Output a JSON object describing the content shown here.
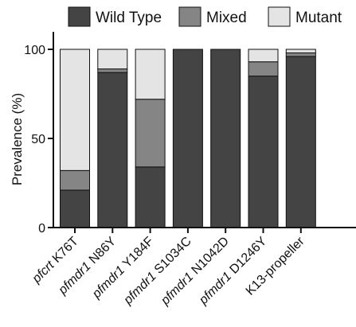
{
  "chart_data": {
    "type": "bar",
    "stacked": true,
    "title": "",
    "xlabel": "",
    "ylabel": "Prevalence (%)",
    "ylim": [
      0,
      100
    ],
    "yticks": [
      "0",
      "50",
      "100"
    ],
    "grid": false,
    "legend_position": "top",
    "categories": [
      {
        "gene": "pfcrt",
        "mutation": "K76T"
      },
      {
        "gene": "pfmdr1",
        "mutation": "N86Y"
      },
      {
        "gene": "pfmdr1",
        "mutation": "Y184F"
      },
      {
        "gene": "pfmdr1",
        "mutation": "S1034C"
      },
      {
        "gene": "pfmdr1",
        "mutation": "N1042D"
      },
      {
        "gene": "pfmdr1",
        "mutation": "D1246Y"
      },
      {
        "gene": "",
        "mutation": "K13-propeller"
      }
    ],
    "series": [
      {
        "name": "Wild Type",
        "color": "#444444",
        "values": [
          21,
          87,
          34,
          100,
          100,
          85,
          96
        ]
      },
      {
        "name": "Mixed",
        "color": "#858585",
        "values": [
          11,
          2,
          38,
          0,
          0,
          8,
          2
        ]
      },
      {
        "name": "Mutant",
        "color": "#e4e4e4",
        "values": [
          68,
          11,
          28,
          0,
          0,
          7,
          2
        ]
      }
    ]
  }
}
